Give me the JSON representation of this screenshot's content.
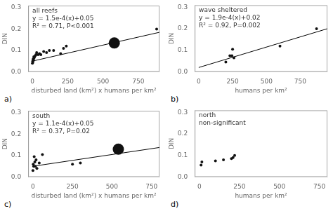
{
  "chart_data": [
    {
      "type": "scatter",
      "label": "a)",
      "title": "all reefs",
      "annotations": [
        "y = 1.5e-4(x)+0.05",
        "R² = 0.71, P<0.001"
      ],
      "x_label": "disturbed land (km²) x humans per km²",
      "y_label": "DIN",
      "xlim": [
        -30,
        900
      ],
      "ylim": [
        0.0,
        0.31
      ],
      "xticks": [
        0,
        250,
        500,
        750
      ],
      "yticks": [
        {
          "value": 0.0,
          "label": "0.0"
        },
        0.1,
        0.2,
        0.3
      ],
      "grid": false,
      "series": [
        {
          "type": "scatter",
          "color": "#111111",
          "x": [
            0,
            2,
            3,
            5,
            8,
            10,
            12,
            15,
            20,
            25,
            30,
            40,
            50,
            60,
            80,
            100,
            120,
            150,
            200,
            220,
            240,
            880
          ],
          "values": [
            0.04,
            0.05,
            0.045,
            0.06,
            0.055,
            0.07,
            0.065,
            0.07,
            0.075,
            0.08,
            0.09,
            0.08,
            0.085,
            0.08,
            0.095,
            0.09,
            0.1,
            0.1,
            0.085,
            0.11,
            0.12,
            0.2
          ]
        },
        {
          "type": "scatter",
          "color": "#111111",
          "marker": "large_circle",
          "x": [
            580
          ],
          "values": [
            0.135
          ]
        },
        {
          "type": "line",
          "color": "#000000",
          "slope": 0.00015,
          "intercept": 0.05
        }
      ]
    },
    {
      "type": "scatter",
      "label": "b)",
      "title": "wave sheltered",
      "annotations": [
        "y = 1.9e-4(x)+0.02",
        "R² = 0.92, P=0.002"
      ],
      "x_label": "humans per km²",
      "y_label": "DIN",
      "xlim": [
        -30,
        950
      ],
      "ylim": [
        0.0,
        0.31
      ],
      "xticks": [
        0,
        250,
        500,
        750
      ],
      "yticks": [
        {
          "value": 0.0,
          "label": "0.0"
        },
        0.1,
        0.2,
        0.3
      ],
      "grid": false,
      "series": [
        {
          "type": "scatter",
          "color": "#111111",
          "x": [
            200,
            230,
            245,
            250,
            260,
            600,
            870
          ],
          "values": [
            0.045,
            0.075,
            0.075,
            0.105,
            0.065,
            0.12,
            0.2
          ]
        },
        {
          "type": "line",
          "color": "#000000",
          "slope": 0.00019,
          "intercept": 0.02
        }
      ]
    },
    {
      "type": "scatter",
      "label": "c)",
      "title": "south",
      "annotations": [
        "y = 1.1e-4(x)+0.05",
        "R² = 0.37, P=0.02"
      ],
      "x_label": "disturbed land (km²) x humans per km²",
      "y_label": "DIN",
      "xlim": [
        -30,
        800
      ],
      "ylim": [
        0.0,
        0.31
      ],
      "xticks": [
        0,
        250,
        500,
        750
      ],
      "yticks": [
        {
          "value": 0.0,
          "label": "0.0"
        },
        0.1,
        0.2,
        0.3
      ],
      "grid": false,
      "series": [
        {
          "type": "scatter",
          "color": "#111111",
          "x": [
            0,
            2,
            5,
            8,
            12,
            15,
            20,
            25,
            40,
            60,
            250,
            300
          ],
          "values": [
            0.03,
            0.06,
            0.05,
            0.095,
            0.07,
            0.05,
            0.08,
            0.04,
            0.065,
            0.105,
            0.06,
            0.065
          ]
        },
        {
          "type": "scatter",
          "color": "#111111",
          "marker": "large_circle",
          "x": [
            540
          ],
          "values": [
            0.13
          ]
        },
        {
          "type": "line",
          "color": "#000000",
          "slope": 0.00011,
          "intercept": 0.05
        }
      ]
    },
    {
      "type": "scatter",
      "label": "d)",
      "title": "north",
      "subtitle": "non-significant",
      "x_label": "humans per km²",
      "y_label": "DIN",
      "xlim": [
        -30,
        800
      ],
      "ylim": [
        0.0,
        0.31
      ],
      "xticks": [
        0,
        250,
        500,
        750
      ],
      "yticks": [
        {
          "value": 0.0,
          "label": "0.0"
        },
        0.1,
        0.2,
        0.3
      ],
      "grid": false,
      "series": [
        {
          "type": "scatter",
          "color": "#111111",
          "x": [
            10,
            15,
            100,
            150,
            200,
            210,
            220
          ],
          "values": [
            0.055,
            0.07,
            0.075,
            0.08,
            0.085,
            0.09,
            0.1
          ]
        }
      ]
    }
  ]
}
